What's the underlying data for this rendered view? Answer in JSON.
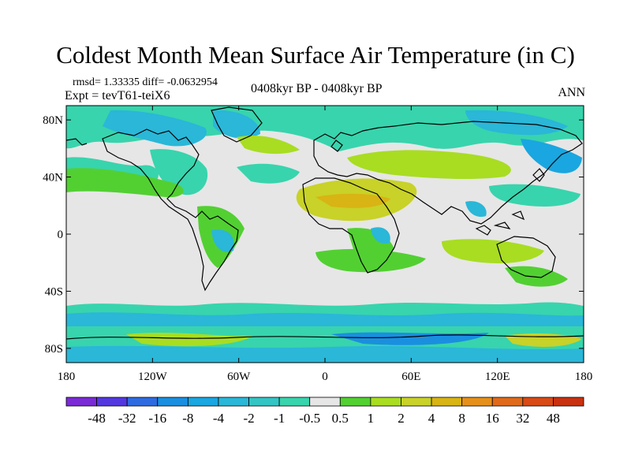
{
  "title": "Coldest Month Mean Surface Air Temperature (in C)",
  "stats": "rmsd= 1.33335 diff= -0.0632954",
  "experiment": "Expt = tevT61-teiX6",
  "period": "0408kyr BP - 0408kyr BP",
  "season": "ANN",
  "lat_labels": [
    "80N",
    "40N",
    "0",
    "40S",
    "80S"
  ],
  "lon_labels": [
    "180",
    "120W",
    "60W",
    "0",
    "60E",
    "120E",
    "180"
  ],
  "colorbar": {
    "labels": [
      "-48",
      "-32",
      "-16",
      "-8",
      "-4",
      "-2",
      "-1",
      "-0.5",
      "0.5",
      "1",
      "2",
      "4",
      "8",
      "16",
      "32",
      "48"
    ],
    "colors": [
      "#7a2bd6",
      "#5338e0",
      "#2f6be0",
      "#1a8fe0",
      "#1aa6e0",
      "#2ab7d8",
      "#34c4c4",
      "#38d4ad",
      "#e6e6e6",
      "#52d032",
      "#a8dd22",
      "#c8d228",
      "#d8b414",
      "#e6901c",
      "#e06a1c",
      "#d84a16",
      "#c83210"
    ]
  },
  "colors": {
    "ocean_neutral": "#e6e6e6",
    "cool_light": "#38d4ad",
    "cool_mid": "#2ab7d8",
    "cool_strong": "#1a8fe0",
    "warm_light": "#52d032",
    "warm_mid": "#a8dd22",
    "warm_strong": "#c8d228",
    "warm_orange": "#d8b414",
    "coast": "#000000"
  }
}
